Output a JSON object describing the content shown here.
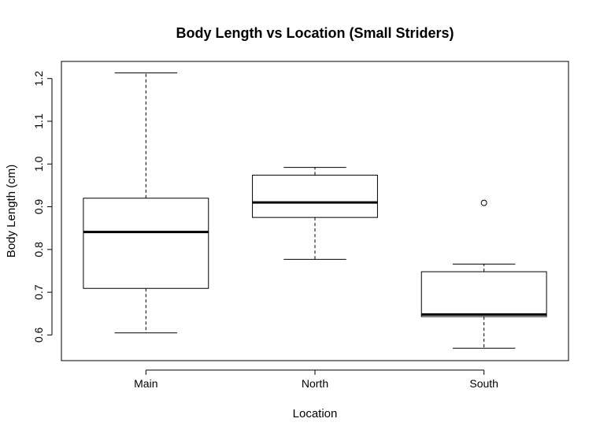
{
  "chart_data": {
    "type": "boxplot",
    "title": "Body Length vs Location (Small Striders)",
    "xlabel": "Location",
    "ylabel": "Body Length (cm)",
    "ylim": [
      0.54,
      1.24
    ],
    "yticks": [
      0.6,
      0.7,
      0.8,
      0.9,
      1.0,
      1.1,
      1.2
    ],
    "ytick_labels": [
      "0.6",
      "0.7",
      "0.8",
      "0.9",
      "1.0",
      "1.1",
      "1.2"
    ],
    "categories": [
      "Main",
      "North",
      "South"
    ],
    "boxes": [
      {
        "category": "Main",
        "whisker_low": 0.605,
        "q1": 0.709,
        "median": 0.841,
        "q3": 0.92,
        "whisker_high": 1.213,
        "outliers": []
      },
      {
        "category": "North",
        "whisker_low": 0.777,
        "q1": 0.875,
        "median": 0.91,
        "q3": 0.974,
        "whisker_high": 0.992,
        "outliers": []
      },
      {
        "category": "South",
        "whisker_low": 0.569,
        "q1": 0.643,
        "median": 0.648,
        "q3": 0.748,
        "whisker_high": 0.766,
        "outliers": [
          0.909
        ]
      }
    ],
    "grid": false,
    "colors": {
      "box_fill": "#ffffff",
      "stroke": "#000000"
    }
  }
}
